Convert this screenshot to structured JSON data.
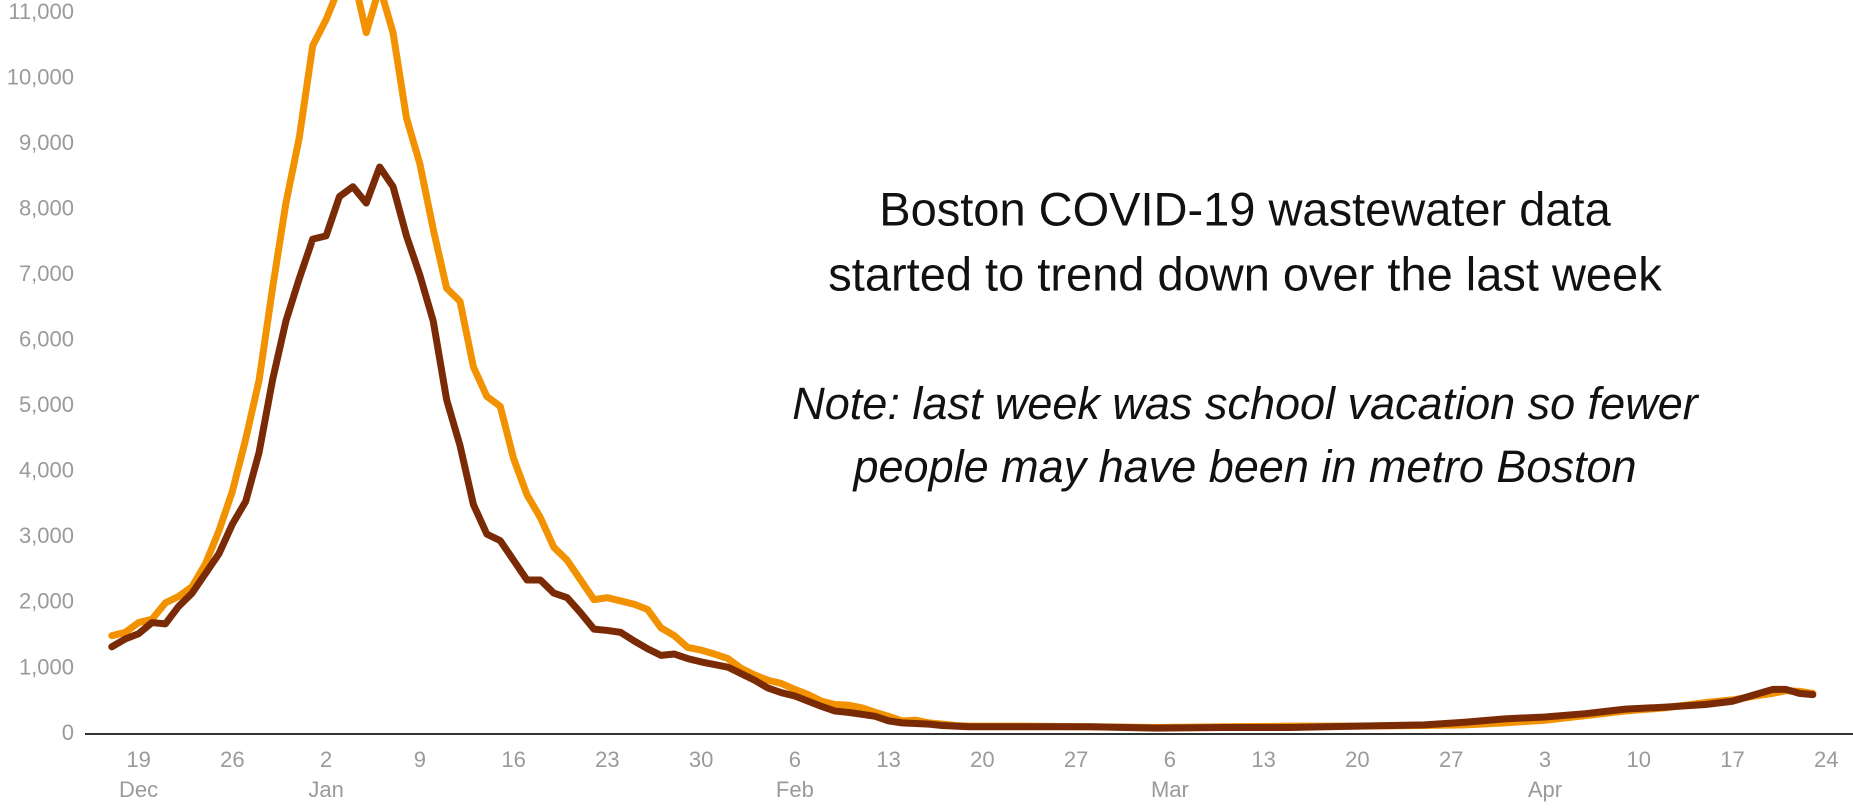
{
  "chart_data": {
    "type": "line",
    "title": [
      "Boston COVID-19 wastewater data",
      "started to trend down over the last week"
    ],
    "note": [
      "Note: last week was school vacation so fewer",
      "people may have been in metro Boston"
    ],
    "x": [
      17,
      18,
      19,
      20,
      21,
      22,
      23,
      24,
      25,
      26,
      27,
      28,
      29,
      30,
      31,
      32,
      33,
      34,
      35,
      36,
      37,
      38,
      39,
      40,
      41,
      42,
      43,
      44,
      45,
      46,
      47,
      48,
      49,
      50,
      51,
      52,
      53,
      54,
      55,
      56,
      57,
      58,
      59,
      60,
      61,
      62,
      63,
      64,
      65,
      66,
      67,
      68,
      69,
      70,
      71,
      72,
      73,
      74,
      75,
      76,
      77,
      78,
      79,
      80,
      81,
      85,
      90,
      95,
      100,
      105,
      110,
      115,
      118,
      121,
      124,
      127,
      130,
      133,
      136,
      138,
      140,
      141,
      142,
      143,
      144
    ],
    "series": [
      {
        "color": "#f39200",
        "values": [
          1500,
          1550,
          1700,
          1750,
          2000,
          2100,
          2250,
          2600,
          3100,
          3700,
          4500,
          5400,
          6800,
          8100,
          9100,
          10500,
          10900,
          11400,
          11600,
          10700,
          11400,
          10700,
          9400,
          8700,
          7700,
          6800,
          6600,
          5600,
          5150,
          5000,
          4200,
          3650,
          3300,
          2850,
          2650,
          2350,
          2050,
          2080,
          2030,
          1980,
          1900,
          1620,
          1500,
          1320,
          1280,
          1220,
          1150,
          1000,
          900,
          820,
          770,
          680,
          600,
          500,
          450,
          440,
          400,
          330,
          270,
          200,
          210,
          170,
          150,
          130,
          120,
          120,
          110,
          100,
          110,
          120,
          120,
          130,
          140,
          170,
          210,
          280,
          350,
          400,
          480,
          520,
          590,
          620,
          660,
          650,
          620
        ]
      },
      {
        "color": "#7a2b06",
        "values": [
          1330,
          1450,
          1530,
          1700,
          1680,
          1950,
          2150,
          2450,
          2750,
          3200,
          3550,
          4300,
          5400,
          6300,
          6950,
          7550,
          7600,
          8200,
          8350,
          8100,
          8650,
          8350,
          7600,
          7000,
          6300,
          5100,
          4400,
          3500,
          3050,
          2950,
          2650,
          2350,
          2350,
          2150,
          2080,
          1850,
          1600,
          1580,
          1550,
          1420,
          1300,
          1200,
          1220,
          1150,
          1100,
          1060,
          1020,
          920,
          820,
          700,
          630,
          580,
          500,
          420,
          350,
          330,
          300,
          270,
          200,
          170,
          160,
          150,
          130,
          120,
          110,
          110,
          110,
          90,
          100,
          100,
          120,
          140,
          180,
          230,
          260,
          310,
          380,
          410,
          450,
          500,
          620,
          680,
          680,
          620,
          600
        ]
      }
    ],
    "xlim": [
      15,
      147
    ],
    "xticks": [
      19,
      26,
      {
        "value": 33,
        "label": "2"
      },
      {
        "value": 40,
        "label": "9"
      },
      {
        "value": 47,
        "label": "16"
      },
      {
        "value": 54,
        "label": "23"
      },
      {
        "value": 61,
        "label": "30"
      },
      {
        "value": 68,
        "label": "6"
      },
      {
        "value": 75,
        "label": "13"
      },
      {
        "value": 82,
        "label": "20"
      },
      {
        "value": 89,
        "label": "27"
      },
      {
        "value": 96,
        "label": "6"
      },
      {
        "value": 103,
        "label": "13"
      },
      {
        "value": 110,
        "label": "20"
      },
      {
        "value": 117,
        "label": "27"
      },
      {
        "value": 124,
        "label": "3"
      },
      {
        "value": 131,
        "label": "10"
      },
      {
        "value": 138,
        "label": "17"
      },
      {
        "value": 145,
        "label": "24"
      }
    ],
    "xtick_months": [
      {
        "value": 19,
        "label": "Dec"
      },
      {
        "value": 33,
        "label": "Jan"
      },
      {
        "value": 68,
        "label": "Feb"
      },
      {
        "value": 96,
        "label": "Mar"
      },
      {
        "value": 124,
        "label": "Apr"
      }
    ],
    "ylim": [
      0,
      11000
    ],
    "yticks": [
      0,
      {
        "value": 1000,
        "label": "1,000"
      },
      {
        "value": 2000,
        "label": "2,000"
      },
      {
        "value": 3000,
        "label": "3,000"
      },
      {
        "value": 4000,
        "label": "4,000"
      },
      {
        "value": 5000,
        "label": "5,000"
      },
      {
        "value": 6000,
        "label": "6,000"
      },
      {
        "value": 7000,
        "label": "7,000"
      },
      {
        "value": 8000,
        "label": "8,000"
      },
      {
        "value": 9000,
        "label": "9,000"
      },
      {
        "value": 10000,
        "label": "10,000"
      },
      {
        "value": 11000,
        "label": "11,000"
      }
    ],
    "grid": false
  }
}
